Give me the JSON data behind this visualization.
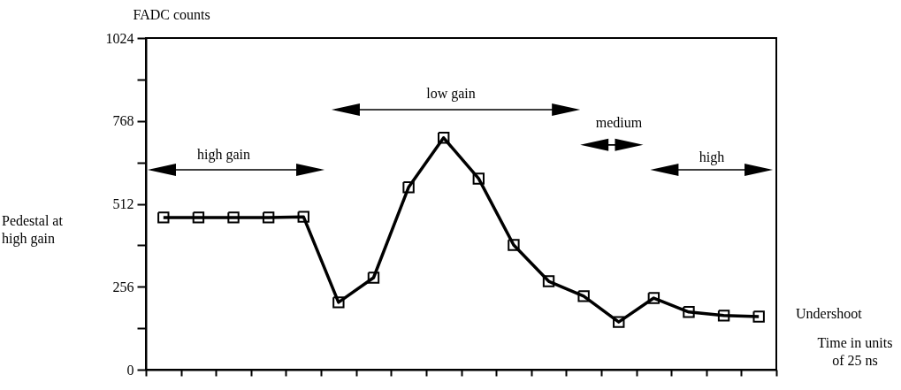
{
  "chart_data": {
    "type": "line",
    "ylabel": "FADC counts",
    "categories": [
      null,
      null,
      null,
      null,
      null,
      null,
      null,
      null,
      null,
      null,
      null,
      null,
      null,
      null,
      null,
      null,
      null,
      null
    ],
    "series": [
      {
        "color": "#000000",
        "values": [
          470,
          470,
          470,
          470,
          472,
          208,
          284,
          563,
          716,
          590,
          385,
          273,
          227,
          147,
          221,
          178,
          167,
          164
        ]
      }
    ],
    "ylim": [
      0,
      1024
    ],
    "yticks": [
      0,
      {
        "value": 128,
        "label": null
      },
      256,
      {
        "value": 384,
        "label": null
      },
      512,
      {
        "value": 640,
        "label": null
      },
      768,
      {
        "value": 896,
        "label": null
      },
      1024
    ],
    "tick_labels": "y",
    "grid": false,
    "marker": "square",
    "line_style": "solid",
    "annotations": [
      "high gain",
      "low gain",
      "medium",
      "high",
      "Pedestal at high gain",
      "Undershoot",
      "Time in units of 25 ns"
    ]
  }
}
